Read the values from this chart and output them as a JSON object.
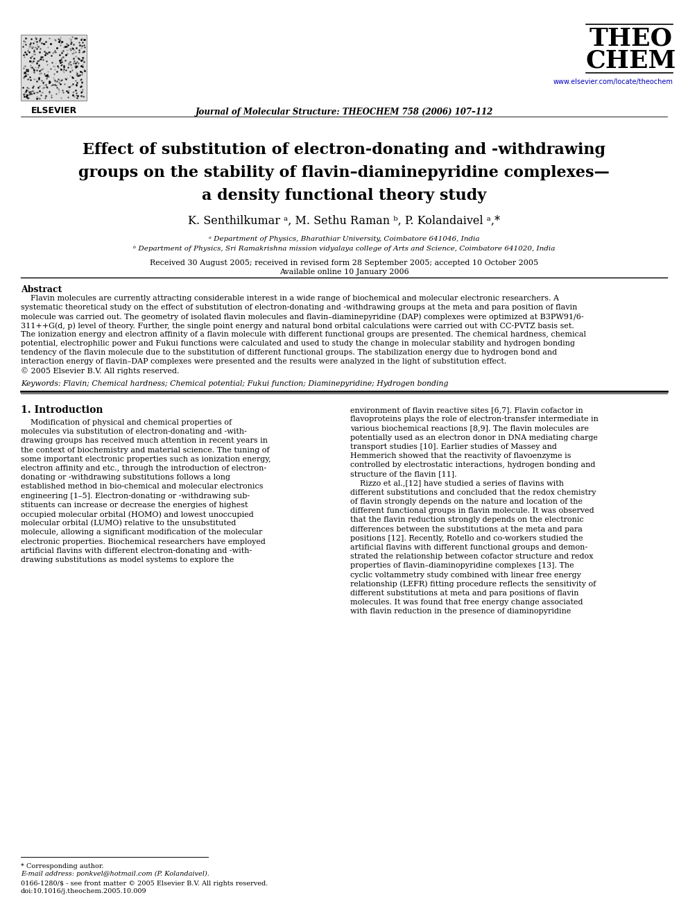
{
  "bg_color": "#ffffff",
  "journal_name": "Journal of Molecular Structure: THEOCHEM 758 (2006) 107–112",
  "journal_url": "www.elsevier.com/locate/theochem",
  "theochem_line1": "THEO",
  "theochem_line2": "CHEM",
  "elsevier_label": "ELSEVIER",
  "paper_title_line1": "Effect of substitution of electron-donating and -withdrawing",
  "paper_title_line2": "groups on the stability of flavin–diaminepyridine complexes—",
  "paper_title_line3": "a density functional theory study",
  "authors": "K. Senthilkumar ᵃ, M. Sethu Raman ᵇ, P. Kolandaivel ᵃ,*",
  "affil_a": "ᵃ Department of Physics, Bharathiar University, Coimbatore 641046, India",
  "affil_b": "ᵇ Department of Physics, Sri Ramakrishna mission vidyalaya college of Arts and Science, Coimbatore 641020, India",
  "received": "Received 30 August 2005; received in revised form 28 September 2005; accepted 10 October 2005",
  "available": "Available online 10 January 2006",
  "abstract_heading": "Abstract",
  "keywords_label": "Keywords:",
  "keywords_text": "Flavin; Chemical hardness; Chemical potential; Fukui function; Diaminepyridine; Hydrogen bonding",
  "intro_heading": "1. Introduction",
  "footnote_star": "* Corresponding author.",
  "footnote_email": "E-mail address: ponkvel@hotmail.com (P. Kolandaivel).",
  "footnote_issn": "0166-1280/$ - see front matter © 2005 Elsevier B.V. All rights reserved.",
  "footnote_doi": "doi:10.1016/j.theochem.2005.10.009",
  "abstract_lines": [
    "    Flavin molecules are currently attracting considerable interest in a wide range of biochemical and molecular electronic researchers. A",
    "systematic theoretical study on the effect of substitution of electron-donating and -withdrawing groups at the meta and para position of flavin",
    "molecule was carried out. The geometry of isolated flavin molecules and flavin–diaminepyridine (DAP) complexes were optimized at B3PW91/6-",
    "311++G(d, p) level of theory. Further, the single point energy and natural bond orbital calculations were carried out with CC-PVTZ basis set.",
    "The ionization energy and electron affinity of a flavin molecule with different functional groups are presented. The chemical hardness, chemical",
    "potential, electrophilic power and Fukui functions were calculated and used to study the change in molecular stability and hydrogen bonding",
    "tendency of the flavin molecule due to the substitution of different functional groups. The stabilization energy due to hydrogen bond and",
    "interaction energy of flavin–DAP complexes were presented and the results were analyzed in the light of substitution effect.",
    "© 2005 Elsevier B.V. All rights reserved."
  ],
  "col1_lines": [
    "    Modification of physical and chemical properties of",
    "molecules via substitution of electron-donating and -with-",
    "drawing groups has received much attention in recent years in",
    "the context of biochemistry and material science. The tuning of",
    "some important electronic properties such as ionization energy,",
    "electron affinity and etc., through the introduction of electron-",
    "donating or -withdrawing substitutions follows a long",
    "established method in bio-chemical and molecular electronics",
    "engineering [1–5]. Electron-donating or -withdrawing sub-",
    "stituents can increase or decrease the energies of highest",
    "occupied molecular orbital (HOMO) and lowest unoccupied",
    "molecular orbital (LUMO) relative to the unsubstituted",
    "molecule, allowing a significant modification of the molecular",
    "electronic properties. Biochemical researchers have employed",
    "artificial flavins with different electron-donating and -with-",
    "drawing substitutions as model systems to explore the"
  ],
  "col2_lines": [
    "environment of flavin reactive sites [6,7]. Flavin cofactor in",
    "flavoproteins plays the role of electron-transfer intermediate in",
    "various biochemical reactions [8,9]. The flavin molecules are",
    "potentially used as an electron donor in DNA mediating charge",
    "transport studies [10]. Earlier studies of Massey and",
    "Hemmerich showed that the reactivity of flavoenzyme is",
    "controlled by electrostatic interactions, hydrogen bonding and",
    "structure of the flavin [11].",
    "    Rizzo et al.,[12] have studied a series of flavins with",
    "different substitutions and concluded that the redox chemistry",
    "of flavin strongly depends on the nature and location of the",
    "different functional groups in flavin molecule. It was observed",
    "that the flavin reduction strongly depends on the electronic",
    "differences between the substitutions at the meta and para",
    "positions [12]. Recently, Rotello and co-workers studied the",
    "artificial flavins with different functional groups and demon-",
    "strated the relationship between cofactor structure and redox",
    "properties of flavin–diaminopyridine complexes [13]. The",
    "cyclic voltammetry study combined with linear free energy",
    "relationship (LEFR) fitting procedure reflects the sensitivity of",
    "different substitutions at meta and para positions of flavin",
    "molecules. It was found that free energy change associated",
    "with flavin reduction in the presence of diaminopyridine"
  ]
}
